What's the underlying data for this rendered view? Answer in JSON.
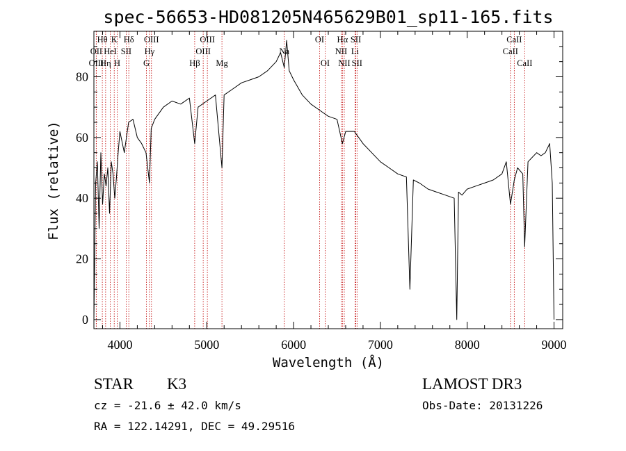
{
  "chart_data": {
    "type": "line",
    "title": "spec-56653-HD081205N465629B01_sp11-165.fits",
    "xlabel": "Wavelength (Å)",
    "ylabel": "Flux (relative)",
    "xlim": [
      3700,
      9100
    ],
    "ylim": [
      -3,
      95
    ],
    "xticks": [
      4000,
      5000,
      6000,
      7000,
      8000,
      9000
    ],
    "yticks": [
      0,
      20,
      40,
      60,
      80
    ],
    "series": [
      {
        "name": "flux",
        "x": [
          3700,
          3720,
          3740,
          3760,
          3780,
          3800,
          3820,
          3840,
          3860,
          3880,
          3900,
          3920,
          3940,
          3960,
          3980,
          4000,
          4050,
          4100,
          4150,
          4200,
          4250,
          4300,
          4340,
          4360,
          4400,
          4500,
          4600,
          4700,
          4800,
          4861,
          4900,
          5000,
          5100,
          5175,
          5200,
          5300,
          5400,
          5500,
          5600,
          5700,
          5800,
          5850,
          5893,
          5920,
          5950,
          6000,
          6100,
          6200,
          6300,
          6400,
          6500,
          6563,
          6600,
          6700,
          6800,
          6900,
          7000,
          7100,
          7200,
          7300,
          7340,
          7380,
          7450,
          7550,
          7650,
          7750,
          7850,
          7880,
          7900,
          7940,
          8000,
          8100,
          8200,
          8300,
          8400,
          8450,
          8498,
          8542,
          8580,
          8640,
          8662,
          8700,
          8800,
          8850,
          8900,
          8950,
          8980,
          9000
        ],
        "values": [
          0,
          45,
          52,
          30,
          55,
          38,
          48,
          44,
          50,
          35,
          52,
          48,
          40,
          47,
          55,
          62,
          55,
          65,
          66,
          60,
          58,
          55,
          45,
          63,
          66,
          70,
          72,
          71,
          73,
          58,
          70,
          72,
          74,
          50,
          74,
          76,
          78,
          79,
          80,
          82,
          85,
          88,
          83,
          92,
          82,
          79,
          74,
          71,
          69,
          67,
          66,
          58,
          62,
          62,
          58,
          55,
          52,
          50,
          48,
          47,
          10,
          46,
          45,
          43,
          42,
          41,
          40,
          0,
          42,
          41,
          43,
          44,
          45,
          46,
          48,
          52,
          38,
          46,
          50,
          48,
          24,
          52,
          55,
          54,
          55,
          58,
          45,
          0
        ]
      }
    ],
    "spectral_lines": [
      {
        "label": "Hθ",
        "x": 3797,
        "row": 1
      },
      {
        "label": "OII",
        "x": 3727,
        "row": 2
      },
      {
        "label": "OIII",
        "x": 3727,
        "row": 3
      },
      {
        "label": "K",
        "x": 3934,
        "row": 1
      },
      {
        "label": "HeI",
        "x": 3889,
        "row": 2
      },
      {
        "label": "Hη",
        "x": 3835,
        "row": 3
      },
      {
        "label": "Hδ",
        "x": 4102,
        "row": 1
      },
      {
        "label": "SII",
        "x": 4072,
        "row": 2
      },
      {
        "label": "H",
        "x": 3969,
        "row": 3
      },
      {
        "label": "OIII",
        "x": 4363,
        "row": 1
      },
      {
        "label": "Hγ",
        "x": 4340,
        "row": 2
      },
      {
        "label": "G",
        "x": 4305,
        "row": 3
      },
      {
        "label": "OIII",
        "x": 5007,
        "row": 1
      },
      {
        "label": "OIII",
        "x": 4959,
        "row": 2
      },
      {
        "label": "Hβ",
        "x": 4861,
        "row": 3
      },
      {
        "label": "Mg",
        "x": 5175,
        "row": 3
      },
      {
        "label": "Na",
        "x": 5893,
        "row": 2
      },
      {
        "label": "OI",
        "x": 6300,
        "row": 1
      },
      {
        "label": "OI",
        "x": 6364,
        "row": 3
      },
      {
        "label": "Hα",
        "x": 6563,
        "row": 1
      },
      {
        "label": "NII",
        "x": 6548,
        "row": 2
      },
      {
        "label": "NII",
        "x": 6584,
        "row": 3
      },
      {
        "label": "SII",
        "x": 6717,
        "row": 1
      },
      {
        "label": "Li",
        "x": 6708,
        "row": 2
      },
      {
        "label": "SII",
        "x": 6731,
        "row": 3
      },
      {
        "label": "CaII",
        "x": 8542,
        "row": 1
      },
      {
        "label": "CaII",
        "x": 8498,
        "row": 2
      },
      {
        "label": "CaII",
        "x": 8662,
        "row": 3
      }
    ]
  },
  "info": {
    "object_class": "STAR",
    "subclass": "K3",
    "survey": "LAMOST DR3",
    "redshift_text": "cz = -21.6 ± 42.0 km/s",
    "obs_date_text": "Obs-Date: 20131226",
    "coords_text": "RA = 122.14291, DEC =  49.29516"
  },
  "colors": {
    "spectrum": "#000000",
    "line_marker": "#c00000",
    "axes": "#000000",
    "background": "#ffffff"
  }
}
